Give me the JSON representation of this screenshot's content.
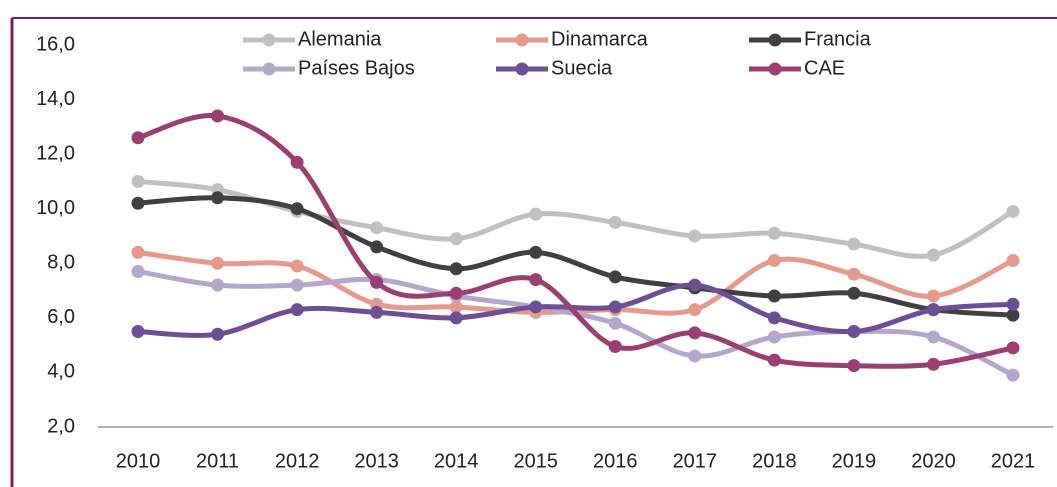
{
  "chart_data": {
    "type": "line",
    "categories": [
      "2010",
      "2011",
      "2012",
      "2013",
      "2014",
      "2015",
      "2016",
      "2017",
      "2018",
      "2019",
      "2020",
      "2021"
    ],
    "series": [
      {
        "name": "Alemania",
        "color": "#c0c0c0",
        "values": [
          11.0,
          10.7,
          9.9,
          9.3,
          8.9,
          9.8,
          9.5,
          9.0,
          9.1,
          8.7,
          8.3,
          9.9
        ]
      },
      {
        "name": "Dinamarca",
        "color": "#e59a8c",
        "values": [
          8.4,
          8.0,
          7.9,
          6.5,
          6.4,
          6.2,
          6.3,
          6.3,
          8.1,
          7.6,
          6.8,
          8.1
        ]
      },
      {
        "name": "Francia",
        "color": "#404040",
        "values": [
          10.2,
          10.4,
          10.0,
          8.6,
          7.8,
          8.4,
          7.5,
          7.1,
          6.8,
          6.9,
          6.3,
          6.1
        ]
      },
      {
        "name": "Países Bajos",
        "color": "#b4a6cc",
        "values": [
          7.7,
          7.2,
          7.2,
          7.4,
          6.8,
          6.4,
          5.8,
          4.6,
          5.3,
          5.5,
          5.3,
          3.9
        ]
      },
      {
        "name": "Suecia",
        "color": "#6d4f96",
        "values": [
          5.5,
          5.4,
          6.3,
          6.2,
          6.0,
          6.4,
          6.4,
          7.2,
          6.0,
          5.5,
          6.3,
          6.5
        ]
      },
      {
        "name": "CAE",
        "color": "#9b3f73",
        "values": [
          12.6,
          13.4,
          11.7,
          7.3,
          6.9,
          7.4,
          4.95,
          5.45,
          4.45,
          4.25,
          4.3,
          4.9
        ]
      }
    ],
    "ylim": [
      2,
      16
    ],
    "yticks": [
      {
        "value": 2,
        "label": "2,0"
      },
      {
        "value": 4,
        "label": "4,0"
      },
      {
        "value": 6,
        "label": "6,0"
      },
      {
        "value": 8,
        "label": "8,0"
      },
      {
        "value": 10,
        "label": "10,0"
      },
      {
        "value": 12,
        "label": "12,0"
      },
      {
        "value": 14,
        "label": "14,0"
      },
      {
        "value": 16,
        "label": "16,0"
      }
    ],
    "smooth": true,
    "grid": false,
    "legend": "top"
  }
}
